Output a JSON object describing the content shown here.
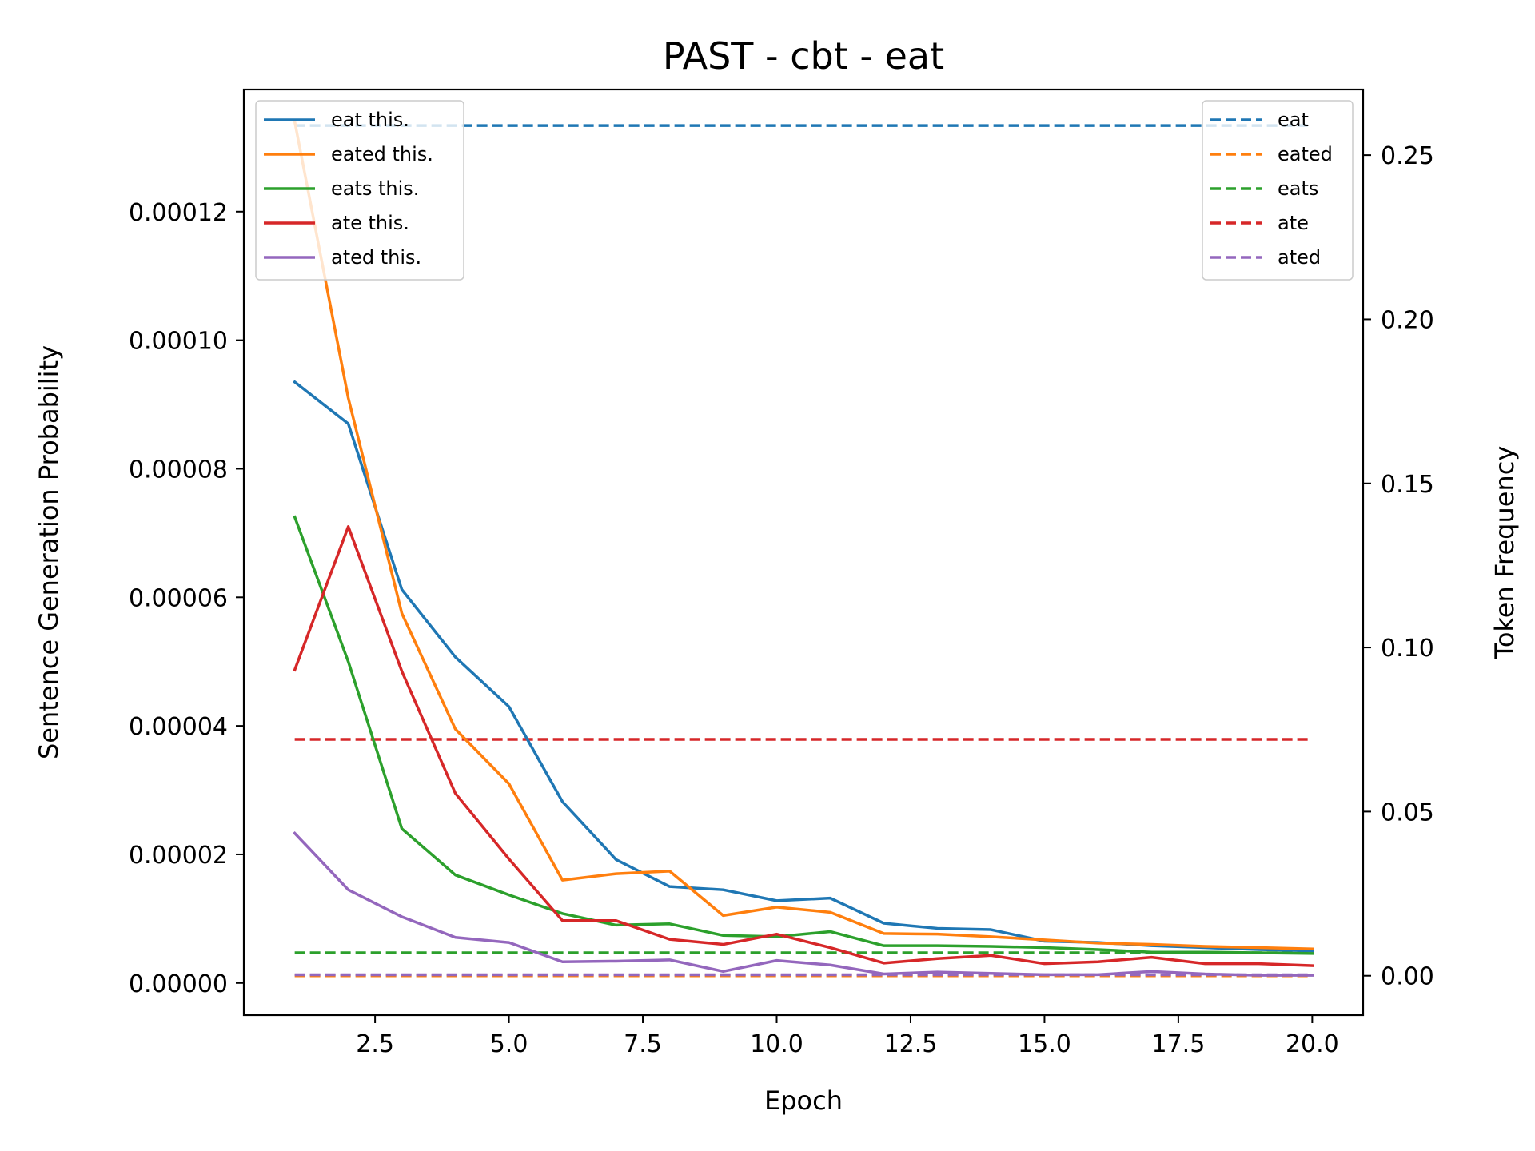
{
  "chart_data": {
    "type": "line",
    "title": "PAST - cbt - eat",
    "xlabel": "Epoch",
    "ylabel": "Sentence Generation Probability",
    "y2label": "Token Frequency",
    "xlim": [
      0.05,
      20.95
    ],
    "ylim": [
      -5e-06,
      0.000139
    ],
    "y2lim": [
      -0.012,
      0.27
    ],
    "xticks": [
      2.5,
      5.0,
      7.5,
      10.0,
      12.5,
      15.0,
      17.5,
      20.0
    ],
    "xtick_labels": [
      "2.5",
      "5.0",
      "7.5",
      "10.0",
      "12.5",
      "15.0",
      "17.5",
      "20.0"
    ],
    "yticks": [
      0,
      2e-05,
      4e-05,
      6e-05,
      8e-05,
      0.0001,
      0.00012
    ],
    "ytick_labels": [
      "0.00000",
      "0.00002",
      "0.00004",
      "0.00006",
      "0.00008",
      "0.00010",
      "0.00012"
    ],
    "y2ticks": [
      0,
      0.05,
      0.1,
      0.15,
      0.2,
      0.25
    ],
    "y2tick_labels": [
      "0.00",
      "0.05",
      "0.10",
      "0.15",
      "0.20",
      "0.25"
    ],
    "grid": false,
    "x": [
      1,
      2,
      3,
      4,
      5,
      6,
      7,
      8,
      9,
      10,
      11,
      12,
      13,
      14,
      15,
      16,
      17,
      18,
      19,
      20
    ],
    "series": [
      {
        "name": "eat this.",
        "axis": "left",
        "style": "solid",
        "color": "#1f77b4",
        "values": [
          9.35e-05,
          8.7e-05,
          6.12e-05,
          5.07e-05,
          4.3e-05,
          2.82e-05,
          1.92e-05,
          1.5e-05,
          1.45e-05,
          1.28e-05,
          1.32e-05,
          9.3e-06,
          8.5e-06,
          8.3e-06,
          6.5e-06,
          6.3e-06,
          5.8e-06,
          5.5e-06,
          5.2e-06,
          5e-06
        ]
      },
      {
        "name": "eated this.",
        "axis": "left",
        "style": "solid",
        "color": "#ff7f0e",
        "values": [
          0.000134,
          9.1e-05,
          5.75e-05,
          3.95e-05,
          3.1e-05,
          1.6e-05,
          1.7e-05,
          1.74e-05,
          1.05e-05,
          1.18e-05,
          1.1e-05,
          7.7e-06,
          7.6e-06,
          7.2e-06,
          6.7e-06,
          6.2e-06,
          6e-06,
          5.7e-06,
          5.5e-06,
          5.3e-06
        ]
      },
      {
        "name": "eats this.",
        "axis": "left",
        "style": "solid",
        "color": "#2ca02c",
        "values": [
          7.25e-05,
          5e-05,
          2.4e-05,
          1.68e-05,
          1.37e-05,
          1.08e-05,
          9e-06,
          9.2e-06,
          7.4e-06,
          7.2e-06,
          8e-06,
          5.8e-06,
          5.8e-06,
          5.7e-06,
          5.5e-06,
          5.2e-06,
          4.8e-06,
          4.8e-06,
          4.7e-06,
          4.6e-06
        ]
      },
      {
        "name": "ate this.",
        "axis": "left",
        "style": "solid",
        "color": "#d62728",
        "values": [
          4.87e-05,
          7.1e-05,
          4.85e-05,
          2.95e-05,
          1.93e-05,
          9.7e-06,
          9.7e-06,
          6.8e-06,
          6e-06,
          7.6e-06,
          5.5e-06,
          3.1e-06,
          3.8e-06,
          4.3e-06,
          3e-06,
          3.3e-06,
          4e-06,
          3e-06,
          3e-06,
          2.7e-06
        ]
      },
      {
        "name": "ated this.",
        "axis": "left",
        "style": "solid",
        "color": "#9467bd",
        "values": [
          2.33e-05,
          1.45e-05,
          1.03e-05,
          7.1e-06,
          6.3e-06,
          3.3e-06,
          3.4e-06,
          3.6e-06,
          1.8e-06,
          3.5e-06,
          2.8e-06,
          1.4e-06,
          1.7e-06,
          1.5e-06,
          1.3e-06,
          1.3e-06,
          1.8e-06,
          1.4e-06,
          1.2e-06,
          1.2e-06
        ]
      },
      {
        "name": "eat",
        "axis": "right",
        "style": "dashed",
        "color": "#1f77b4",
        "values": [
          0.259,
          0.259,
          0.259,
          0.259,
          0.259,
          0.259,
          0.259,
          0.259,
          0.259,
          0.259,
          0.259,
          0.259,
          0.259,
          0.259,
          0.259,
          0.259,
          0.259,
          0.259,
          0.259,
          0.259
        ]
      },
      {
        "name": "eated",
        "axis": "right",
        "style": "dashed",
        "color": "#ff7f0e",
        "values": [
          0.0,
          0.0,
          0.0,
          0.0,
          0.0,
          0.0,
          0.0,
          0.0,
          0.0,
          0.0,
          0.0,
          0.0,
          0.0,
          0.0,
          0.0,
          0.0,
          0.0,
          0.0,
          0.0,
          0.0
        ]
      },
      {
        "name": "eats",
        "axis": "right",
        "style": "dashed",
        "color": "#2ca02c",
        "values": [
          0.007,
          0.007,
          0.007,
          0.007,
          0.007,
          0.007,
          0.007,
          0.007,
          0.007,
          0.007,
          0.007,
          0.007,
          0.007,
          0.007,
          0.007,
          0.007,
          0.007,
          0.007,
          0.007,
          0.007
        ]
      },
      {
        "name": "ate",
        "axis": "right",
        "style": "dashed",
        "color": "#d62728",
        "values": [
          0.072,
          0.072,
          0.072,
          0.072,
          0.072,
          0.072,
          0.072,
          0.072,
          0.072,
          0.072,
          0.072,
          0.072,
          0.072,
          0.072,
          0.072,
          0.072,
          0.072,
          0.072,
          0.072,
          0.072
        ]
      },
      {
        "name": "ated",
        "axis": "right",
        "style": "dashed",
        "color": "#9467bd",
        "values": [
          0.0003,
          0.0003,
          0.0003,
          0.0003,
          0.0003,
          0.0003,
          0.0003,
          0.0003,
          0.0003,
          0.0003,
          0.0003,
          0.0003,
          0.0003,
          0.0003,
          0.0003,
          0.0003,
          0.0003,
          0.0003,
          0.0003,
          0.0003
        ]
      }
    ],
    "legends": [
      {
        "position": "top-left",
        "entries": [
          "eat this.",
          "eated this.",
          "eats this.",
          "ate this.",
          "ated this."
        ]
      },
      {
        "position": "top-right",
        "entries": [
          "eat",
          "eated",
          "eats",
          "ate",
          "ated"
        ]
      }
    ]
  }
}
